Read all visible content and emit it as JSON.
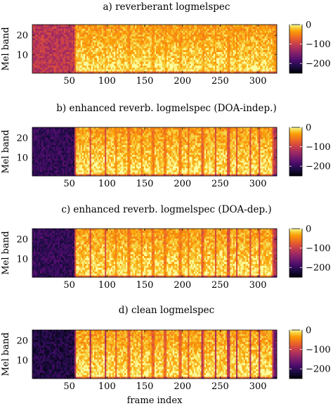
{
  "chart_data": [
    {
      "type": "heatmap",
      "title": "a) reverberant logmelspec",
      "xlabel": "",
      "ylabel": "Mel band",
      "xlim": [
        1,
        325
      ],
      "ylim": [
        0.5,
        25.5
      ],
      "xticks": [
        "50",
        "100",
        "150",
        "200",
        "250",
        "300"
      ],
      "yticks": [
        "10",
        "20"
      ],
      "colorbar": {
        "range": [
          -250,
          0
        ],
        "ticks": [
          "0",
          "−100",
          "−200"
        ]
      },
      "colormap": "inferno",
      "speech_onset_frame": 58,
      "silence_level_db": -120
    },
    {
      "type": "heatmap",
      "title": "b) enhanced reverb. logmelspec (DOA-indep.)",
      "xlabel": "",
      "ylabel": "Mel band",
      "xlim": [
        1,
        325
      ],
      "ylim": [
        0.5,
        25.5
      ],
      "xticks": [
        "50",
        "100",
        "150",
        "200",
        "250",
        "300"
      ],
      "yticks": [
        "10",
        "20"
      ],
      "colorbar": {
        "range": [
          -250,
          0
        ],
        "ticks": [
          "0",
          "−100",
          "−200"
        ]
      },
      "colormap": "inferno",
      "speech_onset_frame": 58,
      "silence_level_db": -200
    },
    {
      "type": "heatmap",
      "title": "c) enhanced reverb. logmelspec (DOA-dep.)",
      "xlabel": "",
      "ylabel": "Mel band",
      "xlim": [
        1,
        325
      ],
      "ylim": [
        0.5,
        25.5
      ],
      "xticks": [
        "50",
        "100",
        "150",
        "200",
        "250",
        "300"
      ],
      "yticks": [
        "10",
        "20"
      ],
      "colorbar": {
        "range": [
          -250,
          0
        ],
        "ticks": [
          "0",
          "−100",
          "−200"
        ]
      },
      "colormap": "inferno",
      "speech_onset_frame": 58,
      "silence_level_db": -200
    },
    {
      "type": "heatmap",
      "title": "d) clean logmelspec",
      "xlabel": "frame index",
      "ylabel": "Mel band",
      "xlim": [
        1,
        325
      ],
      "ylim": [
        0.5,
        25.5
      ],
      "xticks": [
        "50",
        "100",
        "150",
        "200",
        "250",
        "300"
      ],
      "yticks": [
        "10",
        "20"
      ],
      "colorbar": {
        "range": [
          -250,
          0
        ],
        "ticks": [
          "0",
          "−100",
          "−200"
        ]
      },
      "colormap": "inferno",
      "speech_onset_frame": 58,
      "silence_level_db": -215
    }
  ]
}
